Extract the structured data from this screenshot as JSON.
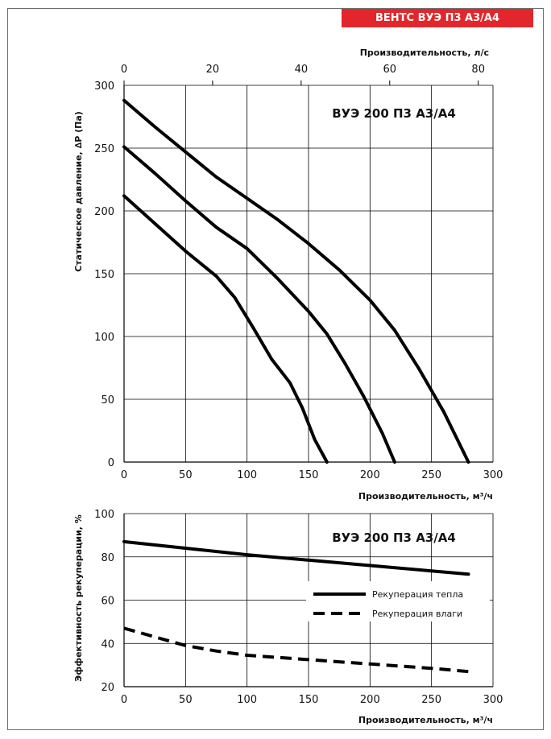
{
  "header": {
    "badge": "ВЕНТС ВУЭ П3 А3/А4",
    "badge_color": "#e3262b"
  },
  "chart_data": [
    {
      "type": "line",
      "title": "ВУЭ 200 П3 А3/А4",
      "xlabel": "Производительность, м³/ч",
      "x2label": "Производительность, л/с",
      "ylabel": "Статическое давление, ∆P (Па)",
      "xlim": [
        0,
        300
      ],
      "ylim": [
        0,
        300
      ],
      "x2lim": [
        0,
        83.33
      ],
      "xticks": [
        "0",
        "50",
        "100",
        "150",
        "200",
        "250",
        "300"
      ],
      "x2ticks": [
        "0",
        "20",
        "40",
        "60",
        "80"
      ],
      "yticks": [
        "0",
        "50",
        "100",
        "150",
        "200",
        "250",
        "300"
      ],
      "grid": true,
      "series": [
        {
          "style": "solid",
          "points": [
            [
              0,
              288
            ],
            [
              25,
              267
            ],
            [
              50,
              247
            ],
            [
              75,
              227
            ],
            [
              100,
              210
            ],
            [
              125,
              193
            ],
            [
              150,
              174
            ],
            [
              175,
              153
            ],
            [
              200,
              129
            ],
            [
              220,
              105
            ],
            [
              240,
              74
            ],
            [
              260,
              40
            ],
            [
              280,
              0
            ]
          ]
        },
        {
          "style": "solid",
          "points": [
            [
              0,
              251
            ],
            [
              25,
              230
            ],
            [
              50,
              208
            ],
            [
              75,
              187
            ],
            [
              100,
              170
            ],
            [
              125,
              146
            ],
            [
              150,
              120
            ],
            [
              165,
              102
            ],
            [
              180,
              78
            ],
            [
              195,
              52
            ],
            [
              210,
              23
            ],
            [
              220,
              0
            ]
          ]
        },
        {
          "style": "solid",
          "points": [
            [
              0,
              212
            ],
            [
              25,
              190
            ],
            [
              50,
              168
            ],
            [
              75,
              148
            ],
            [
              90,
              131
            ],
            [
              105,
              107
            ],
            [
              120,
              82
            ],
            [
              135,
              63
            ],
            [
              145,
              43
            ],
            [
              155,
              18
            ],
            [
              165,
              0
            ]
          ]
        }
      ]
    },
    {
      "type": "line",
      "title": "ВУЭ 200 П3 А3/А4",
      "xlabel": "Производительность, м³/ч",
      "ylabel": "Эффективность рекуперации, %",
      "xlim": [
        0,
        300
      ],
      "ylim": [
        20,
        100
      ],
      "xticks": [
        "0",
        "50",
        "100",
        "150",
        "200",
        "250",
        "300"
      ],
      "yticks": [
        "20",
        "40",
        "60",
        "80",
        "100"
      ],
      "grid": true,
      "legend_position": "right",
      "series": [
        {
          "name": "Рекуперация тепла",
          "style": "solid",
          "points": [
            [
              0,
              87
            ],
            [
              50,
              84
            ],
            [
              100,
              81
            ],
            [
              150,
              78.5
            ],
            [
              200,
              76
            ],
            [
              250,
              73.5
            ],
            [
              280,
              72
            ]
          ]
        },
        {
          "name": "Рекуперация влаги",
          "style": "dashed",
          "points": [
            [
              0,
              47
            ],
            [
              25,
              43
            ],
            [
              50,
              39
            ],
            [
              75,
              36.5
            ],
            [
              100,
              34.5
            ],
            [
              150,
              32.5
            ],
            [
              200,
              30.5
            ],
            [
              250,
              28.5
            ],
            [
              280,
              27
            ]
          ]
        }
      ]
    }
  ]
}
